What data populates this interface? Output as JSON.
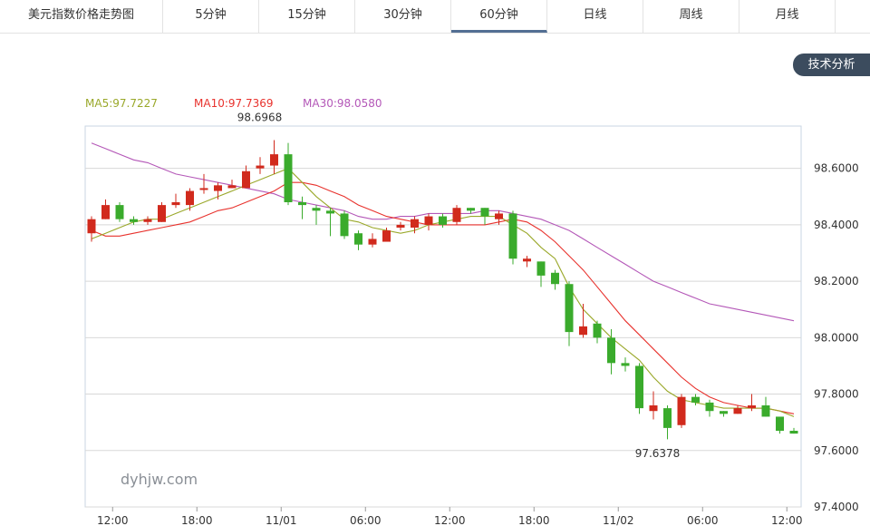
{
  "tabs": [
    "美元指数价格走势图",
    "5分钟",
    "15分钟",
    "30分钟",
    "60分钟",
    "日线",
    "周线",
    "月线"
  ],
  "active_tab": 4,
  "analysis_button": "技术分析",
  "ma_labels": {
    "ma5": {
      "text": "MA5:97.7227",
      "color": "#9aa82a"
    },
    "ma10": {
      "text": "MA10:97.7369",
      "color": "#e8322d"
    },
    "ma30": {
      "text": "MA30:98.0580",
      "color": "#b458b8"
    }
  },
  "watermark": "dyhjw.com",
  "colors": {
    "up": "#d12a1d",
    "down": "#3aab2c",
    "grid": "#d8d8d8"
  },
  "chart_data": {
    "type": "candlestick",
    "ylim": [
      97.4,
      98.75
    ],
    "yticks": [
      "98.6000",
      "98.4000",
      "98.2000",
      "98.0000",
      "97.8000",
      "97.6000",
      "97.4000"
    ],
    "xticks": [
      {
        "label": "12:00",
        "i": 1.5
      },
      {
        "label": "18:00",
        "i": 7.5
      },
      {
        "label": "11/01",
        "i": 13.5
      },
      {
        "label": "06:00",
        "i": 19.5
      },
      {
        "label": "12:00",
        "i": 25.5
      },
      {
        "label": "18:00",
        "i": 31.5
      },
      {
        "label": "11/02",
        "i": 37.5
      },
      {
        "label": "06:00",
        "i": 43.5
      },
      {
        "label": "12:00",
        "i": 49.5
      }
    ],
    "max_label": {
      "text": "98.6968",
      "i": 13
    },
    "min_label": {
      "text": "97.6378",
      "i": 41
    },
    "candles": [
      [
        98.37,
        98.42,
        98.34,
        98.43
      ],
      [
        98.42,
        98.47,
        98.42,
        98.49
      ],
      [
        98.47,
        98.42,
        98.41,
        98.48
      ],
      [
        98.42,
        98.41,
        98.4,
        98.43
      ],
      [
        98.41,
        98.42,
        98.4,
        98.43
      ],
      [
        98.41,
        98.47,
        98.41,
        98.48
      ],
      [
        98.47,
        98.48,
        98.46,
        98.51
      ],
      [
        98.47,
        98.52,
        98.45,
        98.53
      ],
      [
        98.53,
        98.53,
        98.51,
        98.58
      ],
      [
        98.52,
        98.54,
        98.49,
        98.55
      ],
      [
        98.53,
        98.54,
        98.53,
        98.56
      ],
      [
        98.53,
        98.59,
        98.53,
        98.61
      ],
      [
        98.6,
        98.61,
        98.58,
        98.64
      ],
      [
        98.61,
        98.65,
        98.58,
        98.7
      ],
      [
        98.65,
        98.48,
        98.47,
        98.69
      ],
      [
        98.48,
        98.47,
        98.42,
        98.5
      ],
      [
        98.46,
        98.45,
        98.4,
        98.47
      ],
      [
        98.45,
        98.44,
        98.36,
        98.46
      ],
      [
        98.44,
        98.36,
        98.35,
        98.45
      ],
      [
        98.37,
        98.33,
        98.31,
        98.38
      ],
      [
        98.33,
        98.35,
        98.32,
        98.37
      ],
      [
        98.34,
        98.38,
        98.34,
        98.39
      ],
      [
        98.39,
        98.4,
        98.38,
        98.41
      ],
      [
        98.39,
        98.42,
        98.37,
        98.43
      ],
      [
        98.4,
        98.43,
        98.38,
        98.44
      ],
      [
        98.43,
        98.4,
        98.39,
        98.44
      ],
      [
        98.41,
        98.46,
        98.4,
        98.47
      ],
      [
        98.46,
        98.45,
        98.44,
        98.46
      ],
      [
        98.46,
        98.43,
        98.4,
        98.46
      ],
      [
        98.42,
        98.44,
        98.4,
        98.45
      ],
      [
        98.44,
        98.28,
        98.26,
        98.45
      ],
      [
        98.27,
        98.28,
        98.25,
        98.29
      ],
      [
        98.27,
        98.22,
        98.18,
        98.27
      ],
      [
        98.23,
        98.19,
        98.17,
        98.24
      ],
      [
        98.19,
        98.02,
        97.97,
        98.2
      ],
      [
        98.01,
        98.04,
        98.0,
        98.12
      ],
      [
        98.05,
        98.0,
        97.98,
        98.06
      ],
      [
        98.0,
        97.91,
        97.87,
        98.03
      ],
      [
        97.91,
        97.9,
        97.88,
        97.93
      ],
      [
        97.9,
        97.75,
        97.73,
        97.91
      ],
      [
        97.74,
        97.76,
        97.71,
        97.81
      ],
      [
        97.75,
        97.68,
        97.64,
        97.76
      ],
      [
        97.69,
        97.79,
        97.68,
        97.8
      ],
      [
        97.79,
        97.77,
        97.76,
        97.8
      ],
      [
        97.77,
        97.74,
        97.72,
        97.78
      ],
      [
        97.74,
        97.73,
        97.72,
        97.74
      ],
      [
        97.73,
        97.75,
        97.73,
        97.76
      ],
      [
        97.75,
        97.76,
        97.74,
        97.8
      ],
      [
        97.76,
        97.72,
        97.72,
        97.79
      ],
      [
        97.72,
        97.67,
        97.66,
        97.72
      ],
      [
        97.67,
        97.66,
        97.66,
        97.68
      ]
    ],
    "ma5": [
      98.35,
      98.37,
      98.39,
      98.41,
      98.42,
      98.42,
      98.44,
      98.46,
      98.48,
      98.5,
      98.52,
      98.54,
      98.56,
      98.58,
      98.6,
      98.55,
      98.5,
      98.46,
      98.42,
      98.41,
      98.39,
      98.38,
      98.37,
      98.38,
      98.4,
      98.41,
      98.42,
      98.43,
      98.43,
      98.43,
      98.4,
      98.37,
      98.32,
      98.28,
      98.18,
      98.1,
      98.05,
      98.0,
      97.96,
      97.92,
      97.86,
      97.81,
      97.78,
      97.77,
      97.76,
      97.75,
      97.75,
      97.75,
      97.75,
      97.74,
      97.72
    ],
    "ma10": [
      98.38,
      98.36,
      98.36,
      98.37,
      98.38,
      98.39,
      98.4,
      98.41,
      98.43,
      98.45,
      98.46,
      98.48,
      98.5,
      98.52,
      98.55,
      98.55,
      98.54,
      98.52,
      98.5,
      98.47,
      98.45,
      98.43,
      98.42,
      98.41,
      98.4,
      98.4,
      98.4,
      98.4,
      98.4,
      98.41,
      98.42,
      98.41,
      98.38,
      98.34,
      98.29,
      98.24,
      98.18,
      98.12,
      98.06,
      98.01,
      97.96,
      97.91,
      97.86,
      97.82,
      97.79,
      97.77,
      97.76,
      97.75,
      97.75,
      97.74,
      97.73
    ],
    "ma30": [
      98.69,
      98.67,
      98.65,
      98.63,
      98.62,
      98.6,
      98.58,
      98.57,
      98.56,
      98.55,
      98.54,
      98.53,
      98.52,
      98.51,
      98.49,
      98.48,
      98.47,
      98.46,
      98.45,
      98.43,
      98.42,
      98.42,
      98.43,
      98.43,
      98.44,
      98.44,
      98.44,
      98.44,
      98.45,
      98.45,
      98.44,
      98.43,
      98.42,
      98.4,
      98.38,
      98.35,
      98.32,
      98.29,
      98.26,
      98.23,
      98.2,
      98.18,
      98.16,
      98.14,
      98.12,
      98.11,
      98.1,
      98.09,
      98.08,
      98.07,
      98.06
    ]
  }
}
